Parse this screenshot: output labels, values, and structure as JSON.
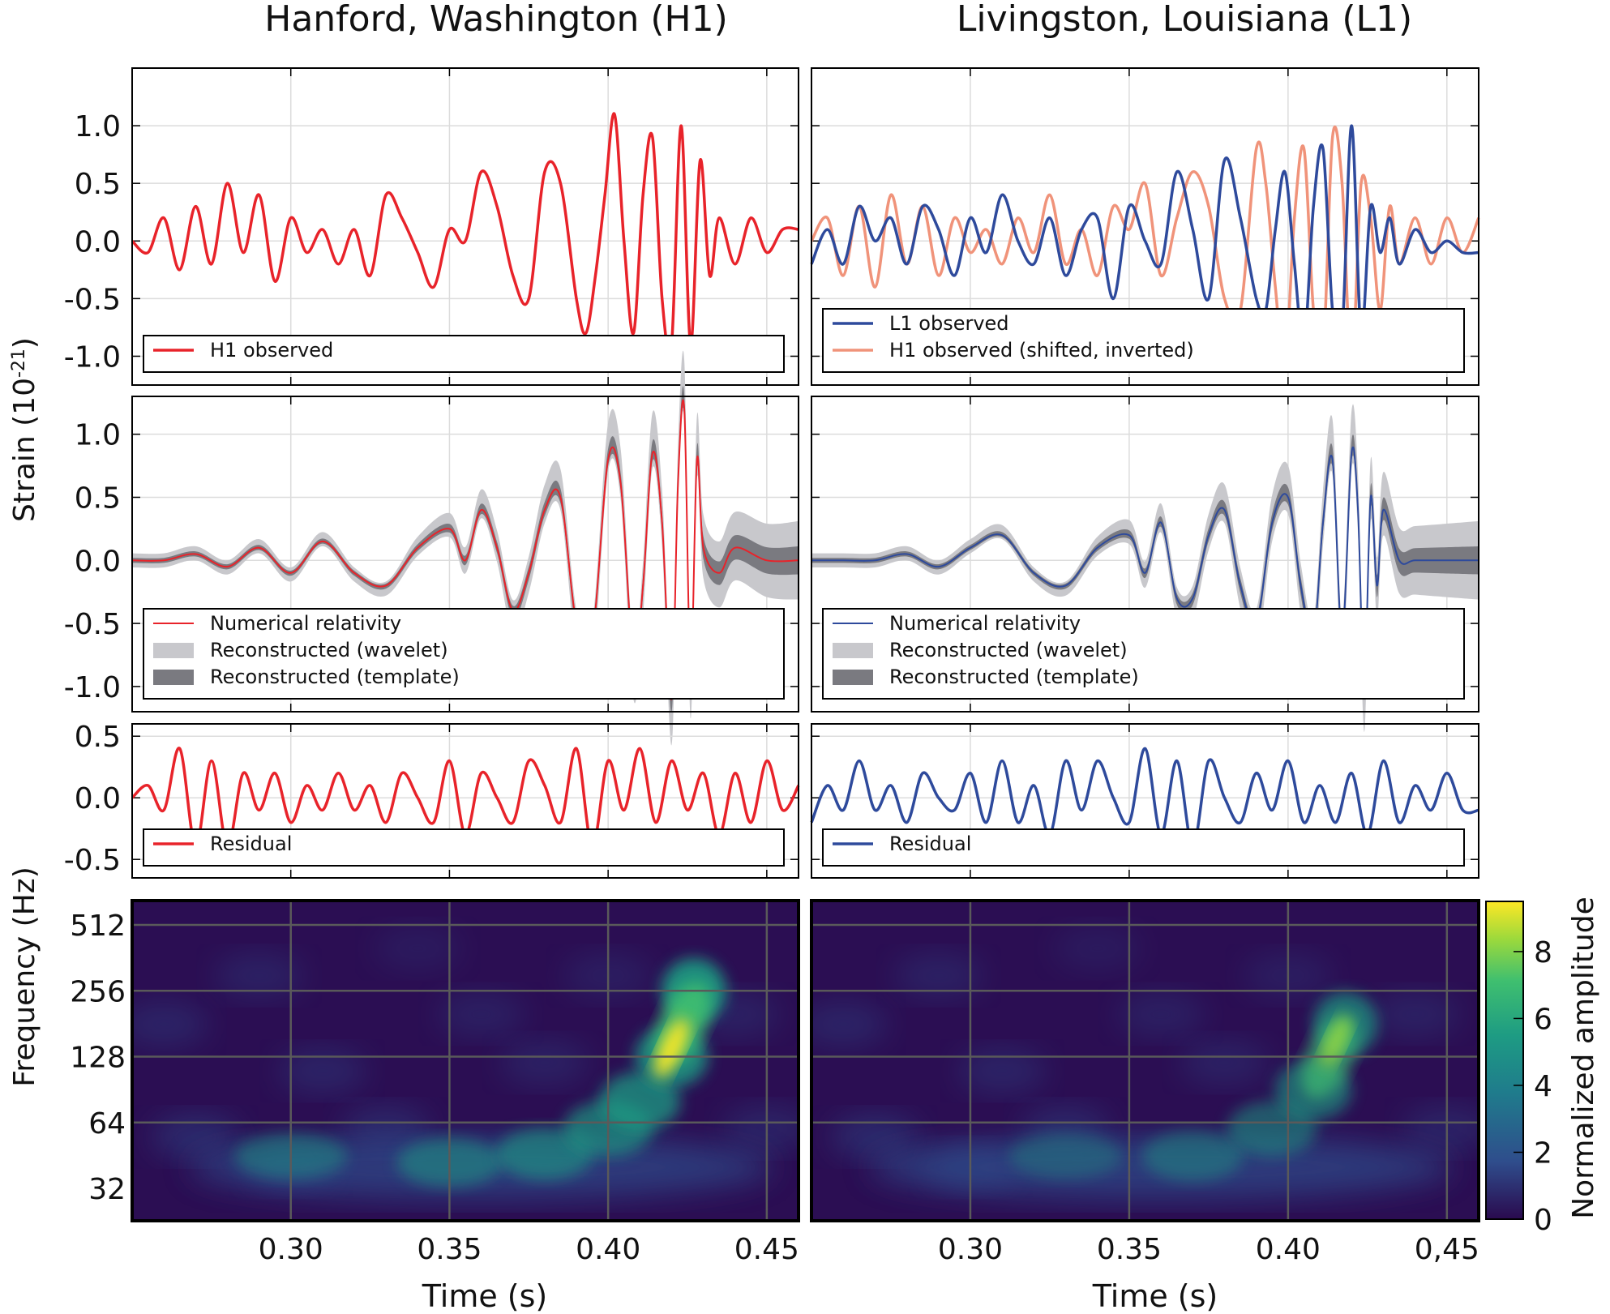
{
  "figure": {
    "col_titles": [
      "Hanford, Washington (H1)",
      "Livingston, Louisiana (L1)"
    ],
    "ylabel_strain": "Strain (10",
    "ylabel_strain_exp": "-21",
    "ylabel_strain_close": ")",
    "ylabel_freq": "Frequency (Hz)",
    "xlabel": "Time (s)",
    "colorbar_label": "Normalized amplitude",
    "colors": {
      "h1": "#e8232a",
      "l1": "#2e4a9c",
      "h1_shifted": "#f0937a",
      "wavelet": "#c8c8cc",
      "template": "#7a7a80",
      "grid": "#dcdcdc"
    }
  },
  "chart_data": [
    {
      "type": "line",
      "panel": "H1 strain observed",
      "xlim": [
        0.25,
        0.46
      ],
      "ylim": [
        -1.25,
        1.5
      ],
      "yticks": [
        "1.0",
        "0.5",
        "0.0",
        "-0.5",
        "-1.0"
      ],
      "series": [
        {
          "name": "H1 observed",
          "color": "#e8232a",
          "x": [
            0.25,
            0.255,
            0.26,
            0.265,
            0.27,
            0.275,
            0.28,
            0.285,
            0.29,
            0.295,
            0.3,
            0.305,
            0.31,
            0.315,
            0.32,
            0.325,
            0.33,
            0.335,
            0.34,
            0.345,
            0.35,
            0.355,
            0.36,
            0.365,
            0.37,
            0.375,
            0.38,
            0.385,
            0.39,
            0.393,
            0.396,
            0.399,
            0.402,
            0.405,
            0.408,
            0.411,
            0.414,
            0.417,
            0.42,
            0.423,
            0.426,
            0.429,
            0.432,
            0.435,
            0.44,
            0.445,
            0.45,
            0.455,
            0.46
          ],
          "y": [
            0.0,
            -0.1,
            0.2,
            -0.25,
            0.3,
            -0.2,
            0.5,
            -0.1,
            0.4,
            -0.35,
            0.2,
            -0.1,
            0.1,
            -0.2,
            0.1,
            -0.3,
            0.4,
            0.2,
            -0.1,
            -0.4,
            0.1,
            0.0,
            0.6,
            0.3,
            -0.3,
            -0.5,
            0.6,
            0.5,
            -0.5,
            -0.8,
            -0.3,
            0.4,
            1.1,
            0.0,
            -0.8,
            0.4,
            0.9,
            -0.5,
            -0.9,
            1.0,
            -0.9,
            0.7,
            -0.3,
            0.2,
            -0.2,
            0.2,
            -0.1,
            0.1,
            0.1
          ]
        }
      ],
      "legend": [
        "H1 observed"
      ]
    },
    {
      "type": "line",
      "panel": "L1 strain observed",
      "xlim": [
        0.25,
        0.46
      ],
      "ylim": [
        -1.25,
        1.5
      ],
      "yticks": [
        "1.0",
        "0.5",
        "0.0",
        "-0.5",
        "-1.0"
      ],
      "series": [
        {
          "name": "H1 observed (shifted, inverted)",
          "color": "#f0937a",
          "x": [
            0.25,
            0.255,
            0.26,
            0.265,
            0.27,
            0.275,
            0.28,
            0.285,
            0.29,
            0.295,
            0.3,
            0.305,
            0.31,
            0.315,
            0.32,
            0.325,
            0.33,
            0.335,
            0.34,
            0.345,
            0.35,
            0.355,
            0.36,
            0.365,
            0.37,
            0.375,
            0.38,
            0.385,
            0.39,
            0.393,
            0.396,
            0.399,
            0.402,
            0.405,
            0.408,
            0.411,
            0.414,
            0.417,
            0.42,
            0.423,
            0.426,
            0.429,
            0.432,
            0.435,
            0.44,
            0.445,
            0.45,
            0.455,
            0.46
          ],
          "y": [
            0.0,
            0.2,
            -0.3,
            0.3,
            -0.4,
            0.4,
            -0.2,
            0.3,
            -0.3,
            0.2,
            -0.1,
            0.1,
            -0.2,
            0.2,
            -0.1,
            0.4,
            -0.2,
            0.1,
            -0.3,
            0.3,
            0.1,
            0.5,
            -0.3,
            0.2,
            0.6,
            0.3,
            -0.5,
            -0.6,
            0.8,
            0.5,
            -0.4,
            -1.1,
            0.2,
            0.8,
            -0.6,
            -1.0,
            0.9,
            0.5,
            -1.1,
            0.5,
            0.2,
            -0.6,
            0.3,
            -0.2,
            0.2,
            -0.2,
            0.2,
            -0.1,
            0.2
          ]
        },
        {
          "name": "L1 observed",
          "color": "#2e4a9c",
          "x": [
            0.25,
            0.255,
            0.26,
            0.265,
            0.27,
            0.275,
            0.28,
            0.285,
            0.29,
            0.295,
            0.3,
            0.305,
            0.31,
            0.315,
            0.32,
            0.325,
            0.33,
            0.335,
            0.34,
            0.345,
            0.35,
            0.355,
            0.36,
            0.365,
            0.37,
            0.375,
            0.38,
            0.385,
            0.39,
            0.393,
            0.396,
            0.399,
            0.402,
            0.405,
            0.408,
            0.411,
            0.414,
            0.417,
            0.42,
            0.423,
            0.426,
            0.429,
            0.432,
            0.435,
            0.44,
            0.445,
            0.45,
            0.455,
            0.46
          ],
          "y": [
            -0.2,
            0.1,
            -0.2,
            0.3,
            0.0,
            0.2,
            -0.2,
            0.3,
            0.1,
            -0.3,
            0.2,
            -0.1,
            0.4,
            0.0,
            -0.2,
            0.2,
            -0.3,
            0.1,
            0.2,
            -0.5,
            0.3,
            0.0,
            -0.2,
            0.6,
            0.1,
            -0.5,
            0.7,
            0.2,
            -0.5,
            -0.6,
            0.1,
            0.6,
            -0.2,
            -0.9,
            0.3,
            0.8,
            -0.6,
            -0.8,
            1.0,
            -0.8,
            0.3,
            -0.1,
            0.2,
            -0.2,
            0.1,
            -0.1,
            0.0,
            -0.1,
            -0.1
          ]
        }
      ],
      "legend": [
        "L1 observed",
        "H1 observed (shifted, inverted)"
      ]
    },
    {
      "type": "area",
      "panel": "H1 reconstructed",
      "xlim": [
        0.25,
        0.46
      ],
      "ylim": [
        -1.2,
        1.3
      ],
      "yticks": [
        "1.0",
        "0.5",
        "0.0",
        "-0.5",
        "-1.0"
      ],
      "series": [
        {
          "name": "Numerical relativity",
          "color": "#e8232a",
          "x": [
            0.25,
            0.26,
            0.27,
            0.28,
            0.29,
            0.3,
            0.31,
            0.32,
            0.33,
            0.34,
            0.35,
            0.355,
            0.36,
            0.365,
            0.37,
            0.375,
            0.38,
            0.385,
            0.39,
            0.395,
            0.4,
            0.404,
            0.408,
            0.411,
            0.414,
            0.417,
            0.42,
            0.422,
            0.424,
            0.426,
            0.428,
            0.43,
            0.435,
            0.44,
            0.45,
            0.46
          ],
          "y": [
            0.0,
            0.0,
            0.05,
            -0.05,
            0.1,
            -0.1,
            0.15,
            -0.1,
            -0.2,
            0.1,
            0.25,
            0.0,
            0.4,
            0.1,
            -0.4,
            -0.1,
            0.4,
            0.5,
            -0.5,
            -0.6,
            0.8,
            0.6,
            -0.8,
            -0.2,
            0.85,
            0.3,
            -1.1,
            0.6,
            1.2,
            -0.9,
            0.8,
            0.1,
            -0.1,
            0.1,
            0.0,
            0.0
          ]
        }
      ],
      "legend": [
        "Numerical relativity",
        "Reconstructed (wavelet)",
        "Reconstructed (template)"
      ]
    },
    {
      "type": "area",
      "panel": "L1 reconstructed",
      "xlim": [
        0.25,
        0.46
      ],
      "ylim": [
        -1.2,
        1.3
      ],
      "yticks": [
        "1.0",
        "0.5",
        "0.0",
        "-0.5",
        "-1.0"
      ],
      "series": [
        {
          "name": "Numerical relativity",
          "color": "#2e4a9c",
          "x": [
            0.25,
            0.26,
            0.27,
            0.28,
            0.29,
            0.3,
            0.31,
            0.32,
            0.33,
            0.34,
            0.35,
            0.355,
            0.36,
            0.365,
            0.37,
            0.375,
            0.38,
            0.385,
            0.39,
            0.395,
            0.4,
            0.404,
            0.408,
            0.411,
            0.414,
            0.417,
            0.42,
            0.422,
            0.424,
            0.426,
            0.428,
            0.43,
            0.435,
            0.44,
            0.45,
            0.46
          ],
          "y": [
            0.0,
            0.0,
            0.0,
            0.05,
            -0.05,
            0.1,
            0.2,
            -0.1,
            -0.2,
            0.1,
            0.2,
            -0.1,
            0.3,
            -0.3,
            -0.3,
            0.2,
            0.4,
            -0.2,
            -0.5,
            0.3,
            0.5,
            -0.2,
            -0.6,
            0.3,
            0.8,
            -0.6,
            0.85,
            0.4,
            -1.0,
            0.5,
            -0.2,
            0.4,
            0.0,
            0.0,
            0.0,
            0.0
          ]
        }
      ],
      "legend": [
        "Numerical relativity",
        "Reconstructed (wavelet)",
        "Reconstructed (template)"
      ]
    },
    {
      "type": "line",
      "panel": "H1 residual",
      "xlim": [
        0.25,
        0.46
      ],
      "ylim": [
        -0.65,
        0.6
      ],
      "yticks": [
        "0.5",
        "0.0",
        "-0.5"
      ],
      "series": [
        {
          "name": "Residual",
          "color": "#e8232a",
          "x": [
            0.25,
            0.255,
            0.26,
            0.265,
            0.27,
            0.275,
            0.28,
            0.285,
            0.29,
            0.295,
            0.3,
            0.305,
            0.31,
            0.315,
            0.32,
            0.325,
            0.33,
            0.335,
            0.34,
            0.345,
            0.35,
            0.355,
            0.36,
            0.365,
            0.37,
            0.375,
            0.38,
            0.385,
            0.39,
            0.395,
            0.4,
            0.405,
            0.41,
            0.415,
            0.42,
            0.425,
            0.43,
            0.435,
            0.44,
            0.445,
            0.45,
            0.455,
            0.46
          ],
          "y": [
            0.0,
            0.1,
            -0.1,
            0.4,
            -0.4,
            0.3,
            -0.4,
            0.2,
            -0.1,
            0.2,
            -0.2,
            0.1,
            -0.1,
            0.2,
            -0.1,
            0.1,
            -0.2,
            0.2,
            0.0,
            -0.2,
            0.3,
            -0.3,
            0.2,
            0.0,
            -0.2,
            0.3,
            0.1,
            -0.2,
            0.4,
            -0.4,
            0.3,
            -0.1,
            0.4,
            -0.2,
            0.3,
            -0.1,
            0.2,
            -0.3,
            0.2,
            -0.2,
            0.3,
            -0.1,
            0.1
          ]
        }
      ],
      "legend": [
        "Residual"
      ]
    },
    {
      "type": "line",
      "panel": "L1 residual",
      "xlim": [
        0.25,
        0.46
      ],
      "ylim": [
        -0.65,
        0.6
      ],
      "yticks": [
        "0.5",
        "0.0",
        "-0.5"
      ],
      "series": [
        {
          "name": "Residual",
          "color": "#2e4a9c",
          "x": [
            0.25,
            0.255,
            0.26,
            0.265,
            0.27,
            0.275,
            0.28,
            0.285,
            0.29,
            0.295,
            0.3,
            0.305,
            0.31,
            0.315,
            0.32,
            0.325,
            0.33,
            0.335,
            0.34,
            0.345,
            0.35,
            0.355,
            0.36,
            0.365,
            0.37,
            0.375,
            0.38,
            0.385,
            0.39,
            0.395,
            0.4,
            0.405,
            0.41,
            0.415,
            0.42,
            0.425,
            0.43,
            0.435,
            0.44,
            0.445,
            0.45,
            0.455,
            0.46
          ],
          "y": [
            -0.2,
            0.1,
            -0.1,
            0.3,
            -0.1,
            0.1,
            -0.2,
            0.2,
            0.0,
            -0.1,
            0.2,
            -0.2,
            0.3,
            -0.2,
            0.1,
            -0.3,
            0.3,
            -0.1,
            0.3,
            0.0,
            -0.2,
            0.4,
            -0.3,
            0.3,
            -0.4,
            0.3,
            0.0,
            -0.2,
            0.2,
            -0.1,
            0.3,
            -0.2,
            0.1,
            -0.2,
            0.2,
            -0.3,
            0.3,
            -0.2,
            0.1,
            -0.1,
            0.2,
            -0.1,
            -0.1
          ]
        }
      ],
      "legend": [
        "Residual"
      ]
    },
    {
      "type": "heatmap",
      "panel": "H1 time-frequency",
      "xlim": [
        0.25,
        0.46
      ],
      "ylabels": [
        "512",
        "256",
        "128",
        "64",
        "32"
      ],
      "xticks": [
        "0.30",
        "0.35",
        "0.40",
        "0.45"
      ],
      "chirp": [
        [
          0.3,
          45
        ],
        [
          0.35,
          42
        ],
        [
          0.38,
          46
        ],
        [
          0.4,
          60
        ],
        [
          0.41,
          80
        ],
        [
          0.42,
          128
        ],
        [
          0.427,
          256
        ]
      ],
      "peak": 9
    },
    {
      "type": "heatmap",
      "panel": "L1 time-frequency",
      "xlim": [
        0.25,
        0.46
      ],
      "ylabels": [
        "512",
        "256",
        "128",
        "64",
        "32"
      ],
      "xticks": [
        "0.30",
        "0.35",
        "0.40",
        "0,45"
      ],
      "chirp": [
        [
          0.33,
          45
        ],
        [
          0.37,
          45
        ],
        [
          0.395,
          60
        ],
        [
          0.408,
          90
        ],
        [
          0.418,
          180
        ]
      ],
      "peak": 7
    }
  ],
  "colorbar": {
    "ticks": [
      "8",
      "6",
      "4",
      "2",
      "0"
    ],
    "range": [
      0,
      9.5
    ],
    "stops": [
      "#2a0a4e",
      "#2f4d8c",
      "#1f7c8c",
      "#1e9c83",
      "#3fbf6f",
      "#9bd93c",
      "#fde725"
    ]
  }
}
